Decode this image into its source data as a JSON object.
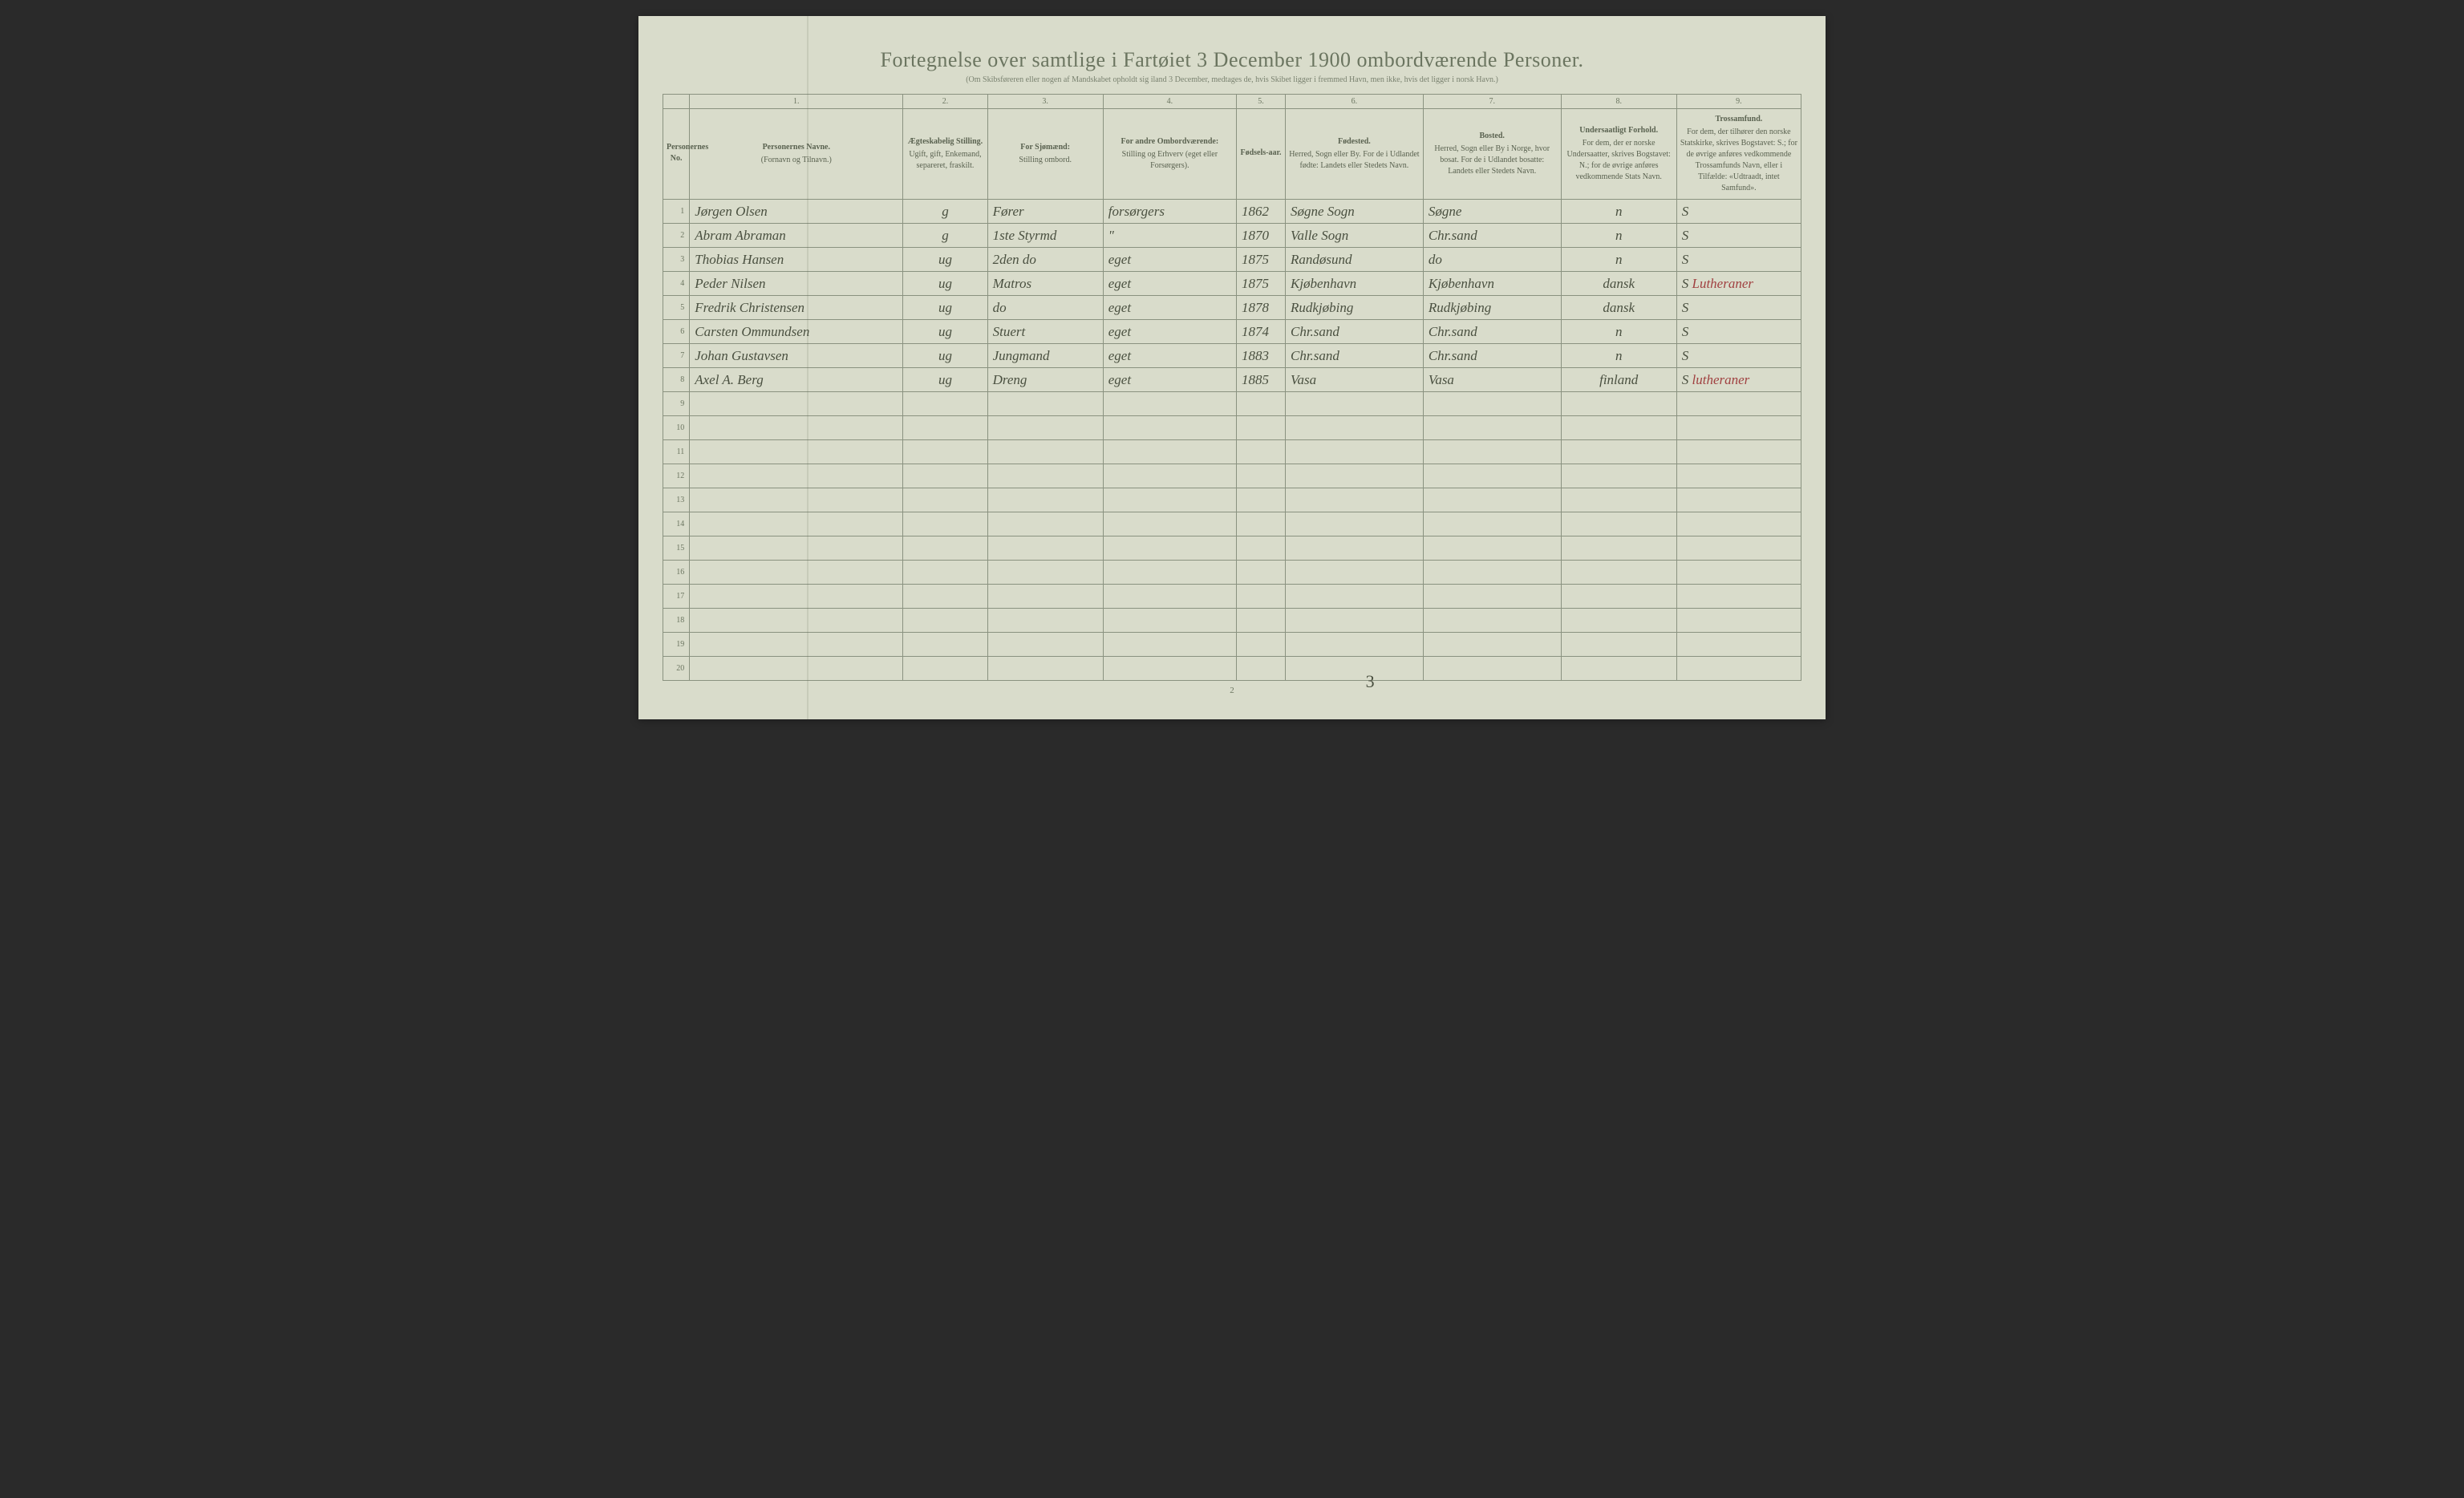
{
  "title": "Fortegnelse over samtlige i Fartøiet 3 December 1900 ombordværende Personer.",
  "subtitle": "(Om Skibsføreren eller nogen af Mandskabet opholdt sig iland 3 December, medtages de, hvis Skibet ligger i fremmed Havn, men ikke, hvis det ligger i norsk Havn.)",
  "colnums": [
    "",
    "1.",
    "2.",
    "3.",
    "4.",
    "5.",
    "6.",
    "7.",
    "8.",
    "9."
  ],
  "headers": {
    "no": {
      "title": "Personernes No."
    },
    "name": {
      "title": "Personernes Navne.",
      "sub": "(Fornavn og Tilnavn.)"
    },
    "status": {
      "title": "Ægteskabelig Stilling.",
      "sub": "Ugift, gift, Enkemand, separeret, fraskilt."
    },
    "seaman": {
      "title": "For Sjømænd:",
      "sub": "Stilling ombord."
    },
    "other": {
      "title": "For andre Ombordværende:",
      "sub": "Stilling og Erhverv (eget eller Forsørgers)."
    },
    "year": {
      "title": "Fødsels-aar."
    },
    "birthplace": {
      "title": "Fødested.",
      "sub": "Herred, Sogn eller By. For de i Udlandet fødte: Landets eller Stedets Navn."
    },
    "residence": {
      "title": "Bosted.",
      "sub": "Herred, Sogn eller By i Norge, hvor bosat. For de i Udlandet bosatte: Landets eller Stedets Navn."
    },
    "nationality": {
      "title": "Undersaatligt Forhold.",
      "sub": "For dem, der er norske Undersaatter, skrives Bogstavet: N.; for de øvrige anføres vedkommende Stats Navn."
    },
    "religion": {
      "title": "Trossamfund.",
      "sub": "For dem, der tilhører den norske Statskirke, skrives Bogstavet: S.; for de øvrige anføres vedkommende Trossamfunds Navn, eller i Tilfælde: «Udtraadt, intet Samfund»."
    }
  },
  "rows": [
    {
      "n": "1",
      "name": "Jørgen Olsen",
      "status": "g",
      "seaman": "Fører",
      "other": "forsørgers",
      "year": "1862",
      "birthplace": "Søgne Sogn",
      "residence": "Søgne",
      "nat": "n",
      "rel": "S",
      "relExtra": ""
    },
    {
      "n": "2",
      "name": "Abram Abraman",
      "status": "g",
      "seaman": "1ste Styrmd",
      "other": "\"",
      "year": "1870",
      "birthplace": "Valle Sogn",
      "residence": "Chr.sand",
      "nat": "n",
      "rel": "S",
      "relExtra": ""
    },
    {
      "n": "3",
      "name": "Thobias Hansen",
      "status": "ug",
      "seaman": "2den do",
      "other": "eget",
      "year": "1875",
      "birthplace": "Randøsund",
      "residence": "do",
      "nat": "n",
      "rel": "S",
      "relExtra": ""
    },
    {
      "n": "4",
      "name": "Peder Nilsen",
      "status": "ug",
      "seaman": "Matros",
      "other": "eget",
      "year": "1875",
      "birthplace": "Kjøbenhavn",
      "residence": "Kjøbenhavn",
      "nat": "dansk",
      "rel": "S",
      "relExtra": "Lutheraner"
    },
    {
      "n": "5",
      "name": "Fredrik Christensen",
      "status": "ug",
      "seaman": "do",
      "other": "eget",
      "year": "1878",
      "birthplace": "Rudkjøbing",
      "residence": "Rudkjøbing",
      "nat": "dansk",
      "rel": "S",
      "relExtra": ""
    },
    {
      "n": "6",
      "name": "Carsten Ommundsen",
      "status": "ug",
      "seaman": "Stuert",
      "other": "eget",
      "year": "1874",
      "birthplace": "Chr.sand",
      "residence": "Chr.sand",
      "nat": "n",
      "rel": "S",
      "relExtra": ""
    },
    {
      "n": "7",
      "name": "Johan Gustavsen",
      "status": "ug",
      "seaman": "Jungmand",
      "other": "eget",
      "year": "1883",
      "birthplace": "Chr.sand",
      "residence": "Chr.sand",
      "nat": "n",
      "rel": "S",
      "relExtra": ""
    },
    {
      "n": "8",
      "name": "Axel A. Berg",
      "status": "ug",
      "seaman": "Dreng",
      "other": "eget",
      "year": "1885",
      "birthplace": "Vasa",
      "residence": "Vasa",
      "nat": "finland",
      "rel": "S",
      "relExtra": "lutheraner"
    }
  ],
  "emptyRowCount": 12,
  "footer": {
    "printedPage": "2",
    "handPage": "3"
  }
}
